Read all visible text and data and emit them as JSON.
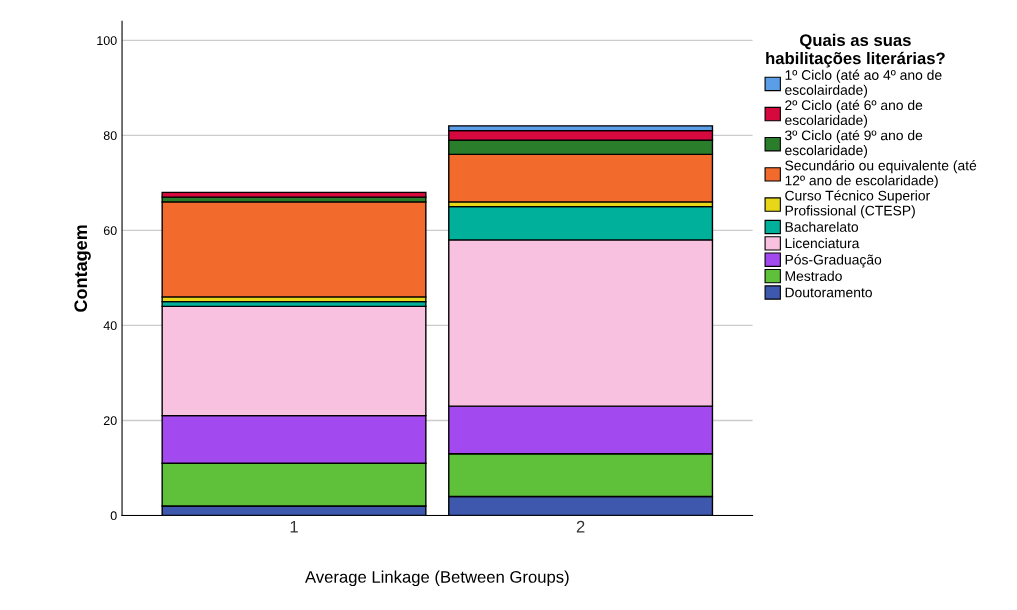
{
  "chart_data": {
    "type": "bar",
    "stacked": true,
    "xlabel": "Average Linkage (Between Groups)",
    "ylabel": "Contagem",
    "legend_title": "Quais as suas\nhabilitações literárias?",
    "categories": [
      "1",
      "2"
    ],
    "series": [
      {
        "name": "Doutoramento",
        "color": "#3e58ae",
        "values": [
          2,
          4
        ]
      },
      {
        "name": "Mestrado",
        "color": "#5fc03a",
        "values": [
          9,
          9
        ]
      },
      {
        "name": "Pós-Graduação",
        "color": "#a349f0",
        "values": [
          10,
          10
        ]
      },
      {
        "name": "Licenciatura",
        "color": "#f9c1e0",
        "values": [
          23,
          35
        ]
      },
      {
        "name": "Bacharelato",
        "color": "#00b09b",
        "values": [
          1,
          7
        ]
      },
      {
        "name": "Curso Técnico Superior\nProfissional (CTESP)",
        "color": "#e8d619",
        "values": [
          1,
          1
        ]
      },
      {
        "name": "Secundário ou equivalente (até\n12º ano de escolaridade)",
        "color": "#f26a2c",
        "values": [
          20,
          10
        ]
      },
      {
        "name": "3º Ciclo (até 9º ano de\nescolaridade)",
        "color": "#2a7d2a",
        "values": [
          1,
          3
        ]
      },
      {
        "name": "2º Ciclo (até 6º ano de\nescolaridade)",
        "color": "#d6093e",
        "values": [
          1,
          2
        ]
      },
      {
        "name": "1º Ciclo (até ao 4º ano de\nescolairdade)",
        "color": "#5b9ee8",
        "values": [
          0,
          1
        ]
      }
    ],
    "ylim": [
      0,
      104
    ],
    "yticks": [
      0,
      20,
      40,
      60,
      80,
      100
    ],
    "grid": "y",
    "legend": "right"
  }
}
